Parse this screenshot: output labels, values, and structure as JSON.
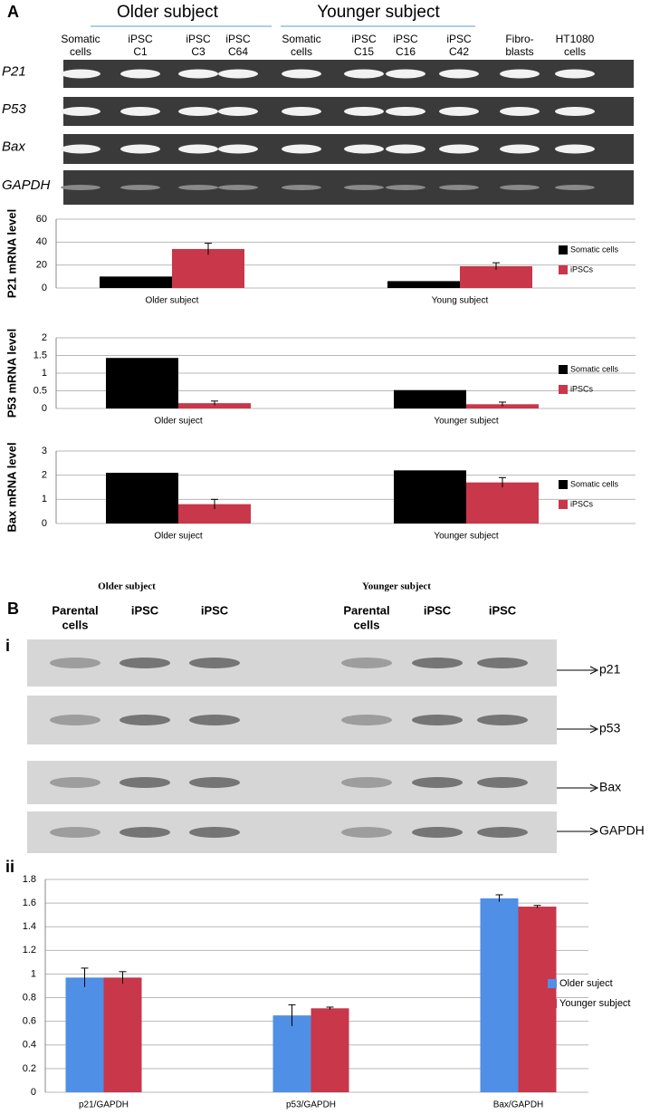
{
  "panels": {
    "a": "A",
    "b": "B",
    "i": "i",
    "ii": "ii"
  },
  "gel_a": {
    "groups": [
      "Older subject",
      "Younger subject"
    ],
    "lanes": [
      [
        "Somatic",
        "cells"
      ],
      [
        "iPSC",
        "C1"
      ],
      [
        "iPSC",
        "C3"
      ],
      [
        "iPSC",
        "C64"
      ],
      [
        "Somatic",
        "cells"
      ],
      [
        "iPSC",
        "C15"
      ],
      [
        "iPSC",
        "C16"
      ],
      [
        "iPSC",
        "C42"
      ],
      [
        "Fibro-",
        "blasts"
      ],
      [
        "HT1080",
        "cells"
      ]
    ],
    "rows": [
      "P21",
      "P53",
      "Bax",
      "GAPDH"
    ]
  },
  "gel_b": {
    "groups": [
      "Older subject",
      "Younger subject"
    ],
    "lanes": [
      [
        "Parental",
        "cells"
      ],
      [
        "iPSC"
      ],
      [
        "iPSC"
      ],
      [
        "Parental",
        "cells"
      ],
      [
        "iPSC"
      ],
      [
        "iPSC"
      ]
    ],
    "bands": [
      "p21",
      "p53",
      "Bax",
      "GAPDH"
    ]
  },
  "chart_data": [
    {
      "type": "bar",
      "y_label": "P21 mRNA level",
      "categories": [
        "Older subject",
        "Young subject"
      ],
      "series": [
        {
          "name": "Somatic cells",
          "color": "#000000",
          "values": [
            10,
            6
          ]
        },
        {
          "name": "iPSCs",
          "color": "#c8374a",
          "values": [
            34,
            19
          ],
          "errors": [
            5,
            3
          ]
        }
      ],
      "ylim": [
        0,
        60
      ],
      "yticks": [
        0,
        20,
        40,
        60
      ],
      "grid": true
    },
    {
      "type": "bar",
      "y_label": "P53 mRNA level",
      "categories": [
        "Older suject",
        "Younger subject"
      ],
      "series": [
        {
          "name": "Somatic cells",
          "color": "#000000",
          "values": [
            1.43,
            0.52
          ]
        },
        {
          "name": "iPSCs",
          "color": "#c8374a",
          "values": [
            0.15,
            0.12
          ],
          "errors": [
            0.06,
            0.06
          ]
        }
      ],
      "ylim": [
        0,
        2
      ],
      "yticks": [
        0,
        0.5,
        1,
        1.5,
        2
      ],
      "grid": true
    },
    {
      "type": "bar",
      "y_label": "Bax mRNA level",
      "categories": [
        "Older suject",
        "Younger subject"
      ],
      "series": [
        {
          "name": "Somatic cells",
          "color": "#000000",
          "values": [
            2.1,
            2.2
          ]
        },
        {
          "name": "iPSCs",
          "color": "#c8374a",
          "values": [
            0.8,
            1.7
          ],
          "errors": [
            0.2,
            0.2
          ]
        }
      ],
      "ylim": [
        0,
        3
      ],
      "yticks": [
        0,
        1,
        2,
        3
      ],
      "grid": true
    },
    {
      "type": "bar",
      "categories": [
        "p21/GAPDH",
        "p53/GAPDH",
        "Bax/GAPDH"
      ],
      "series": [
        {
          "name": "Older suject",
          "color": "#4f8fe6",
          "values": [
            0.97,
            0.65,
            1.64
          ],
          "errors": [
            0.08,
            0.09,
            0.03
          ]
        },
        {
          "name": "Younger subject",
          "color": "#c8374a",
          "values": [
            0.97,
            0.71,
            1.57
          ],
          "errors": [
            0.05,
            0.01,
            0.01
          ]
        }
      ],
      "ylim": [
        0,
        1.8
      ],
      "yticks": [
        0,
        0.2,
        0.4,
        0.6,
        0.8,
        1,
        1.2,
        1.4,
        1.6,
        1.8
      ],
      "grid": true
    }
  ]
}
